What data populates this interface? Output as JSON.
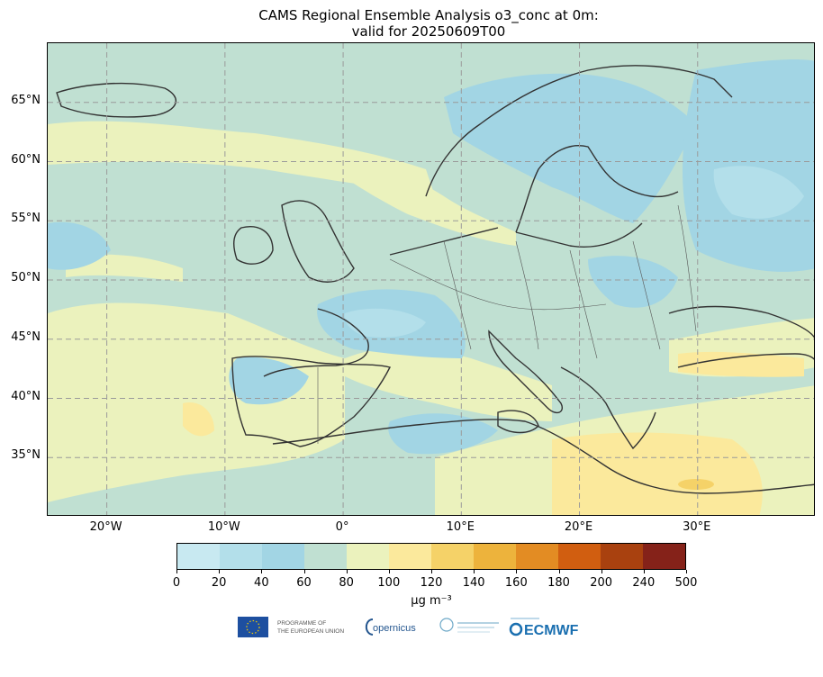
{
  "title": {
    "line1": "CAMS Regional Ensemble Analysis o3_conc at 0m:",
    "line2": "valid for 20250609T00"
  },
  "map": {
    "projection": "plate-carree",
    "extent": {
      "lon_min": -25,
      "lon_max": 40,
      "lat_min": 30,
      "lat_max": 70
    },
    "lat_labels": [
      "65°N",
      "60°N",
      "55°N",
      "50°N",
      "45°N",
      "40°N",
      "35°N"
    ],
    "lon_labels": [
      "20°W",
      "10°W",
      "0°",
      "10°E",
      "20°E",
      "30°E"
    ],
    "gridlines": true,
    "variable": "o3_conc",
    "level": "0m",
    "valid_time": "20250609T00"
  },
  "colorbar": {
    "ticks": [
      "0",
      "20",
      "40",
      "60",
      "80",
      "100",
      "120",
      "140",
      "160",
      "180",
      "200",
      "240",
      "500"
    ],
    "colors": [
      "#c8e9f1",
      "#b3dfea",
      "#a2d5e4",
      "#c0e0d2",
      "#ebf2bd",
      "#fbe99c",
      "#f5d268",
      "#edb33c",
      "#e38c23",
      "#d15e10",
      "#a9410f",
      "#852219"
    ],
    "unit_label": "μg m⁻³"
  },
  "logos": {
    "eu": "PROGRAMME OF THE EUROPEAN UNION",
    "copernicus": "opernicus",
    "ecmwf": "ECMWF"
  }
}
